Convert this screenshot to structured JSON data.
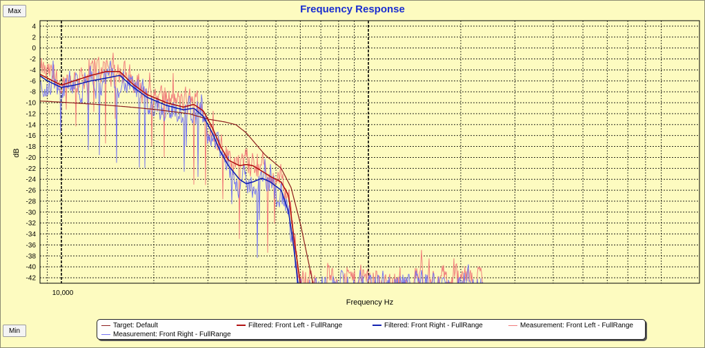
{
  "buttons": {
    "max_label": "Max",
    "min_label": "Min"
  },
  "chart_data": {
    "type": "line",
    "title": "Frequency Response",
    "xlabel": "Frequency Hz",
    "ylabel": "dB",
    "x_scale": "log",
    "x_tick_labels": [
      "10,000"
    ],
    "ylim": [
      -43,
      5
    ],
    "y_ticks": [
      4,
      2,
      0,
      -2,
      -4,
      -6,
      -8,
      -10,
      -12,
      -14,
      -16,
      -18,
      -20,
      -22,
      -24,
      -26,
      -28,
      -30,
      -32,
      -34,
      -36,
      -38,
      -40,
      -42
    ],
    "grid": true,
    "legend_position": "bottom",
    "series": [
      {
        "name": "Target: Default",
        "color": "#8b1a1a",
        "points": [
          [
            8000,
            -9.6
          ],
          [
            10000,
            -9.9
          ],
          [
            13000,
            -10.3
          ],
          [
            16000,
            -10.7
          ],
          [
            20000,
            -11.2
          ],
          [
            26000,
            -12.0
          ],
          [
            30000,
            -13.0
          ],
          [
            34000,
            -13.5
          ],
          [
            37000,
            -14.0
          ],
          [
            40000,
            -15.5
          ],
          [
            46000,
            -19.5
          ],
          [
            52000,
            -22.0
          ],
          [
            56000,
            -25.5
          ],
          [
            60000,
            -32.0
          ],
          [
            66000,
            -43.0
          ]
        ]
      },
      {
        "name": "Filtered: Front Left - FullRange",
        "color": "#b01010",
        "points": [
          [
            8000,
            -4.0
          ],
          [
            9000,
            -5.5
          ],
          [
            10000,
            -6.8
          ],
          [
            11000,
            -6.0
          ],
          [
            12500,
            -5.0
          ],
          [
            14000,
            -4.3
          ],
          [
            15500,
            -4.3
          ],
          [
            17000,
            -6.5
          ],
          [
            19000,
            -8.5
          ],
          [
            22000,
            -10.0
          ],
          [
            25000,
            -10.8
          ],
          [
            27000,
            -10.3
          ],
          [
            29000,
            -11.5
          ],
          [
            31000,
            -14.5
          ],
          [
            33000,
            -18.0
          ],
          [
            35000,
            -20.5
          ],
          [
            38000,
            -21.5
          ],
          [
            40000,
            -21.3
          ],
          [
            42000,
            -21.5
          ],
          [
            45000,
            -22.5
          ],
          [
            48000,
            -23.5
          ],
          [
            52000,
            -24.5
          ],
          [
            55000,
            -27.0
          ],
          [
            57000,
            -34.0
          ],
          [
            60000,
            -43.0
          ]
        ]
      },
      {
        "name": "Filtered: Front Right - FullRange",
        "color": "#1020b0",
        "points": [
          [
            8000,
            -4.0
          ],
          [
            9000,
            -6.0
          ],
          [
            10000,
            -7.2
          ],
          [
            11000,
            -6.8
          ],
          [
            12500,
            -6.0
          ],
          [
            14000,
            -5.5
          ],
          [
            15500,
            -5.0
          ],
          [
            17000,
            -7.0
          ],
          [
            19000,
            -9.0
          ],
          [
            22000,
            -10.5
          ],
          [
            25000,
            -11.3
          ],
          [
            27000,
            -11.0
          ],
          [
            29000,
            -12.5
          ],
          [
            31000,
            -15.5
          ],
          [
            33000,
            -19.0
          ],
          [
            35000,
            -21.5
          ],
          [
            38000,
            -24.0
          ],
          [
            40000,
            -24.8
          ],
          [
            42000,
            -24.5
          ],
          [
            45000,
            -23.8
          ],
          [
            48000,
            -24.5
          ],
          [
            52000,
            -26.0
          ],
          [
            55000,
            -30.0
          ],
          [
            57000,
            -36.0
          ],
          [
            59000,
            -43.0
          ]
        ]
      },
      {
        "name": "Measurement: Front Left - FullRange",
        "color": "#f07878"
      },
      {
        "name": "Measurement: Front Right - FullRange",
        "color": "#7070f0"
      }
    ]
  }
}
